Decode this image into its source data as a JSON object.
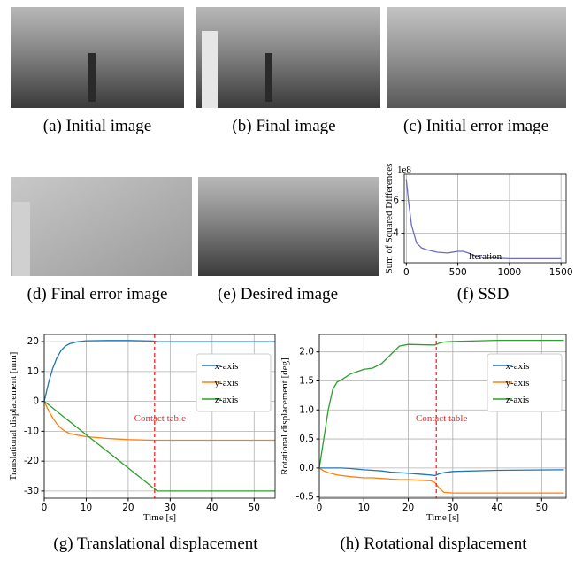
{
  "captions": [
    "(a) Initial image",
    "(b) Final image",
    "(c) Initial error image",
    "(d) Final error image",
    "(e) Desired image",
    "(f) SSD",
    "(g) Translational displacement",
    "(h) Rotational displacement"
  ],
  "chart_data": [
    {
      "type": "line",
      "ylabel": "Sum of Squared Differences",
      "xlabel": "Iteration",
      "offset_label": "1e8",
      "x": [
        0,
        20,
        50,
        100,
        150,
        200,
        300,
        400,
        500,
        550,
        600,
        700,
        800,
        1000,
        1200,
        1500
      ],
      "values": [
        7.3,
        6.0,
        4.5,
        3.4,
        3.1,
        3.0,
        2.85,
        2.8,
        2.9,
        2.9,
        2.8,
        2.55,
        2.5,
        2.45,
        2.45,
        2.45
      ],
      "color": "#6b6bc4",
      "xlim": [
        -20,
        1550
      ],
      "ylim": [
        2.2,
        7.6
      ],
      "xticks": [
        0,
        500,
        1000,
        1500
      ],
      "yticks": [
        4,
        6
      ],
      "grid": true
    },
    {
      "type": "line",
      "ylabel": "Translational displacement [mm]",
      "xlabel": "Time [s]",
      "annotation": "Contact table",
      "vline": 26.3,
      "legend": "upper right",
      "x": [
        0,
        1,
        2,
        3,
        4,
        5,
        6,
        8,
        10,
        15,
        20,
        26,
        27,
        30,
        40,
        55
      ],
      "series": [
        {
          "name": "x-axis",
          "color": "#1f77b4",
          "values": [
            0,
            6,
            11,
            14.5,
            17,
            18.5,
            19.3,
            20,
            20.3,
            20.4,
            20.4,
            20.2,
            20,
            20,
            20,
            20
          ]
        },
        {
          "name": "y-axis",
          "color": "#ff7f0e",
          "values": [
            0,
            -3,
            -5.5,
            -7.5,
            -9,
            -10,
            -10.7,
            -11.3,
            -11.8,
            -12.4,
            -12.8,
            -13,
            -13,
            -13,
            -13,
            -13
          ]
        },
        {
          "name": "z-axis",
          "color": "#2ca02c",
          "values": [
            0,
            -1.1,
            -2.2,
            -3.3,
            -4.5,
            -5.6,
            -6.7,
            -8.9,
            -11.2,
            -16.7,
            -22.3,
            -29,
            -30,
            -30,
            -30,
            -30
          ]
        }
      ],
      "xlim": [
        0,
        55
      ],
      "ylim": [
        -32.4,
        22.4
      ],
      "xticks": [
        0,
        10,
        20,
        30,
        40,
        50
      ],
      "yticks": [
        -30,
        -20,
        -10,
        0,
        10,
        20
      ],
      "grid": true
    },
    {
      "type": "line",
      "ylabel": "Rotational displacement [deg]",
      "xlabel": "Time [s]",
      "annotation": "Contact table",
      "vline": 26.3,
      "legend": "upper right",
      "x": [
        0,
        1,
        2,
        3,
        4,
        5,
        7,
        10,
        12,
        14,
        16,
        18,
        20,
        25,
        26,
        27,
        28,
        30,
        40,
        55
      ],
      "series": [
        {
          "name": "x-axis",
          "color": "#1f77b4",
          "values": [
            0,
            0,
            0,
            0,
            0,
            0,
            -0.01,
            -0.03,
            -0.04,
            -0.05,
            -0.07,
            -0.08,
            -0.09,
            -0.12,
            -0.13,
            -0.1,
            -0.08,
            -0.06,
            -0.04,
            -0.03
          ]
        },
        {
          "name": "y-axis",
          "color": "#ff7f0e",
          "values": [
            0,
            -0.05,
            -0.08,
            -0.1,
            -0.12,
            -0.13,
            -0.15,
            -0.17,
            -0.17,
            -0.18,
            -0.19,
            -0.2,
            -0.2,
            -0.22,
            -0.25,
            -0.35,
            -0.42,
            -0.43,
            -0.43,
            -0.43
          ]
        },
        {
          "name": "z-axis",
          "color": "#2ca02c",
          "values": [
            0,
            0.5,
            1.0,
            1.35,
            1.48,
            1.52,
            1.62,
            1.7,
            1.72,
            1.8,
            1.95,
            2.1,
            2.13,
            2.12,
            2.12,
            2.15,
            2.17,
            2.18,
            2.2,
            2.2
          ]
        }
      ],
      "xlim": [
        0,
        55.5
      ],
      "ylim": [
        -0.52,
        2.3
      ],
      "xticks": [
        0,
        10,
        20,
        30,
        40,
        50
      ],
      "yticks": [
        -0.5,
        0,
        0.5,
        1,
        1.5,
        2
      ],
      "grid": true
    }
  ]
}
